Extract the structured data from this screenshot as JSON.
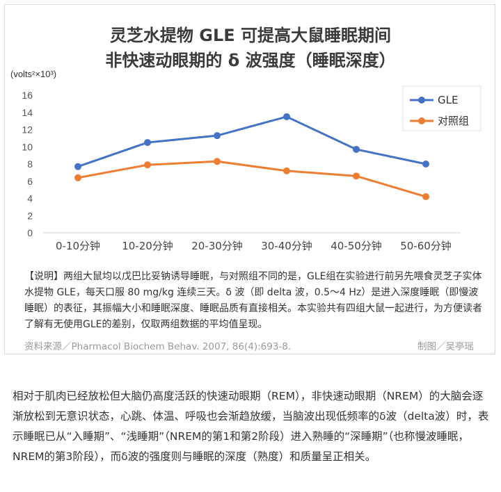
{
  "chart": {
    "title_line1": "灵芝水提物 GLE 可提高大鼠睡眠期间",
    "title_line2": "非快速动眼期的 δ 波强度（睡眠深度）",
    "note": "【说明】两组大鼠均以戊巴比妥钠诱导睡眠，与对照组不同的是，GLE组在实验进行前另先喂食灵芝子实体水提物 GLE，每天口服 80 mg/kg 连续三天。δ 波（即 delta 波，0.5～4 Hz）是进入深度睡眠（即慢波睡眠）的表征，其振幅大小和睡眠深度、睡眠品质有直接相关。本实验共有四组大鼠一起进行，为方便读者了解有无使用GLE的差别，仅取两组数据的平均值呈现。",
    "source": "资料来源／Pharmacol Biochem Behav. 2007, 86(4):693-8.",
    "credit": "制图／吴亭瑶"
  },
  "chart_data": {
    "type": "line",
    "title": "灵芝水提物 GLE 可提高大鼠睡眠期间非快速动眼期的 δ 波强度（睡眠深度）",
    "ylabel": "(volts²×10³)",
    "xlabel": "",
    "categories": [
      "0-10分钟",
      "10-20分钟",
      "20-30分钟",
      "30-40分钟",
      "40-50分钟",
      "50-60分钟"
    ],
    "series": [
      {
        "name": "GLE",
        "color": "#4472c4",
        "values": [
          7.7,
          10.5,
          11.3,
          13.5,
          9.7,
          8.0
        ]
      },
      {
        "name": "对照组",
        "color": "#ed7d31",
        "values": [
          6.4,
          7.9,
          8.3,
          7.2,
          6.6,
          4.2
        ]
      }
    ],
    "ylim": [
      0,
      16
    ],
    "yticks": [
      0,
      2,
      4,
      6,
      8,
      10,
      12,
      14,
      16
    ],
    "grid": false,
    "legend": "right"
  },
  "article": {
    "text": "相对于肌肉已经放松但大脑仍高度活跃的快速动眼期（REM），非快速动眼期（NREM）的大脑会逐渐放松到无意识状态，心跳、体温、呼吸也会渐趋放缓，当脑波出现低频率的δ波（delta波）时，表示睡眠已从“入睡期”、“浅睡期”（NREM的第1和第2阶段）进入熟睡的“深睡期”（也称慢波睡眠，NREM的第3阶段），而δ波的强度则与睡眠的深度（熟度）和质量呈正相关。"
  }
}
